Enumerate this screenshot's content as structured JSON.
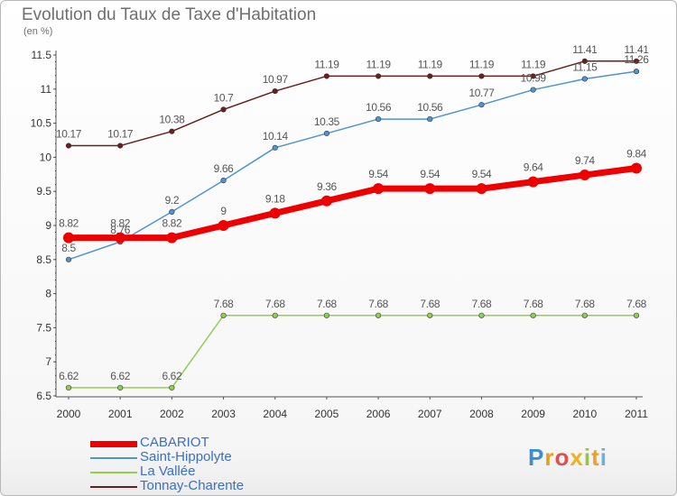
{
  "title": "Evolution du Taux de Taxe d'Habitation",
  "subtitle": "(en %)",
  "logo": "Proxiti",
  "chart_data": {
    "type": "line",
    "x": [
      "2000",
      "2001",
      "2002",
      "2003",
      "2004",
      "2005",
      "2006",
      "2007",
      "2008",
      "2009",
      "2010",
      "2011"
    ],
    "ylim": [
      6.5,
      11.5
    ],
    "yticks": [
      6.5,
      7,
      7.5,
      8,
      8.5,
      9,
      9.5,
      10,
      10.5,
      11,
      11.5
    ],
    "ytick_labels": [
      "6.5",
      "7",
      "7.5",
      "8",
      "8.5",
      "9",
      "9.5",
      "10",
      "10.5",
      "11",
      "11.5"
    ],
    "grid": false,
    "legend_position": "bottom-left",
    "series": [
      {
        "name": "Tonnay-Charente",
        "color": "#6b1e1e",
        "label_color": "#555555",
        "width": 1.5,
        "marker": 2.8,
        "values": [
          10.17,
          10.17,
          10.38,
          10.7,
          10.97,
          11.19,
          11.19,
          11.19,
          11.19,
          11.19,
          11.41,
          11.41
        ],
        "labels": [
          "10.17",
          "10.17",
          "10.38",
          "10.7",
          "10.97",
          "11.19",
          "11.19",
          "11.19",
          "11.19",
          "11.19",
          "11.41",
          "11.41"
        ]
      },
      {
        "name": "Saint-Hippolyte",
        "color": "#4e94d3",
        "label_color": "#555555",
        "width": 1.5,
        "marker": 2.8,
        "values": [
          8.5,
          8.76,
          9.2,
          9.66,
          10.14,
          10.35,
          10.56,
          10.56,
          10.77,
          10.99,
          11.15,
          11.26
        ],
        "labels": [
          "8.5",
          "8.76",
          "9.2",
          "9.66",
          "10.14",
          "10.35",
          "10.56",
          "10.56",
          "10.77",
          "10.99",
          "11.15",
          "11.26"
        ]
      },
      {
        "name": "La Vallée",
        "color": "#8fd14f",
        "label_color": "#555555",
        "width": 1.5,
        "marker": 2.8,
        "values": [
          6.62,
          6.62,
          6.62,
          7.68,
          7.68,
          7.68,
          7.68,
          7.68,
          7.68,
          7.68,
          7.68,
          7.68
        ],
        "labels": [
          "6.62",
          "6.62",
          "6.62",
          "7.68",
          "7.68",
          "7.68",
          "7.68",
          "7.68",
          "7.68",
          "7.68",
          "7.68",
          "7.68"
        ]
      },
      {
        "name": "CABARIOT",
        "color": "#ee0000",
        "label_color": "#555555",
        "width": 7,
        "marker": 6,
        "values": [
          8.82,
          8.82,
          8.82,
          9,
          9.18,
          9.36,
          9.54,
          9.54,
          9.54,
          9.64,
          9.74,
          9.84
        ],
        "labels": [
          "8.82",
          "8.82",
          "8.82",
          "9",
          "9.18",
          "9.36",
          "9.54",
          "9.54",
          "9.54",
          "9.64",
          "9.74",
          "9.84"
        ]
      }
    ],
    "legend": [
      {
        "name": "CABARIOT",
        "color": "#ee0000",
        "width": 7
      },
      {
        "name": "Saint-Hippolyte",
        "color": "#4e94d3",
        "width": 2
      },
      {
        "name": "La Vallée",
        "color": "#8fd14f",
        "width": 2
      },
      {
        "name": "Tonnay-Charente",
        "color": "#6b1e1e",
        "width": 2
      }
    ]
  }
}
